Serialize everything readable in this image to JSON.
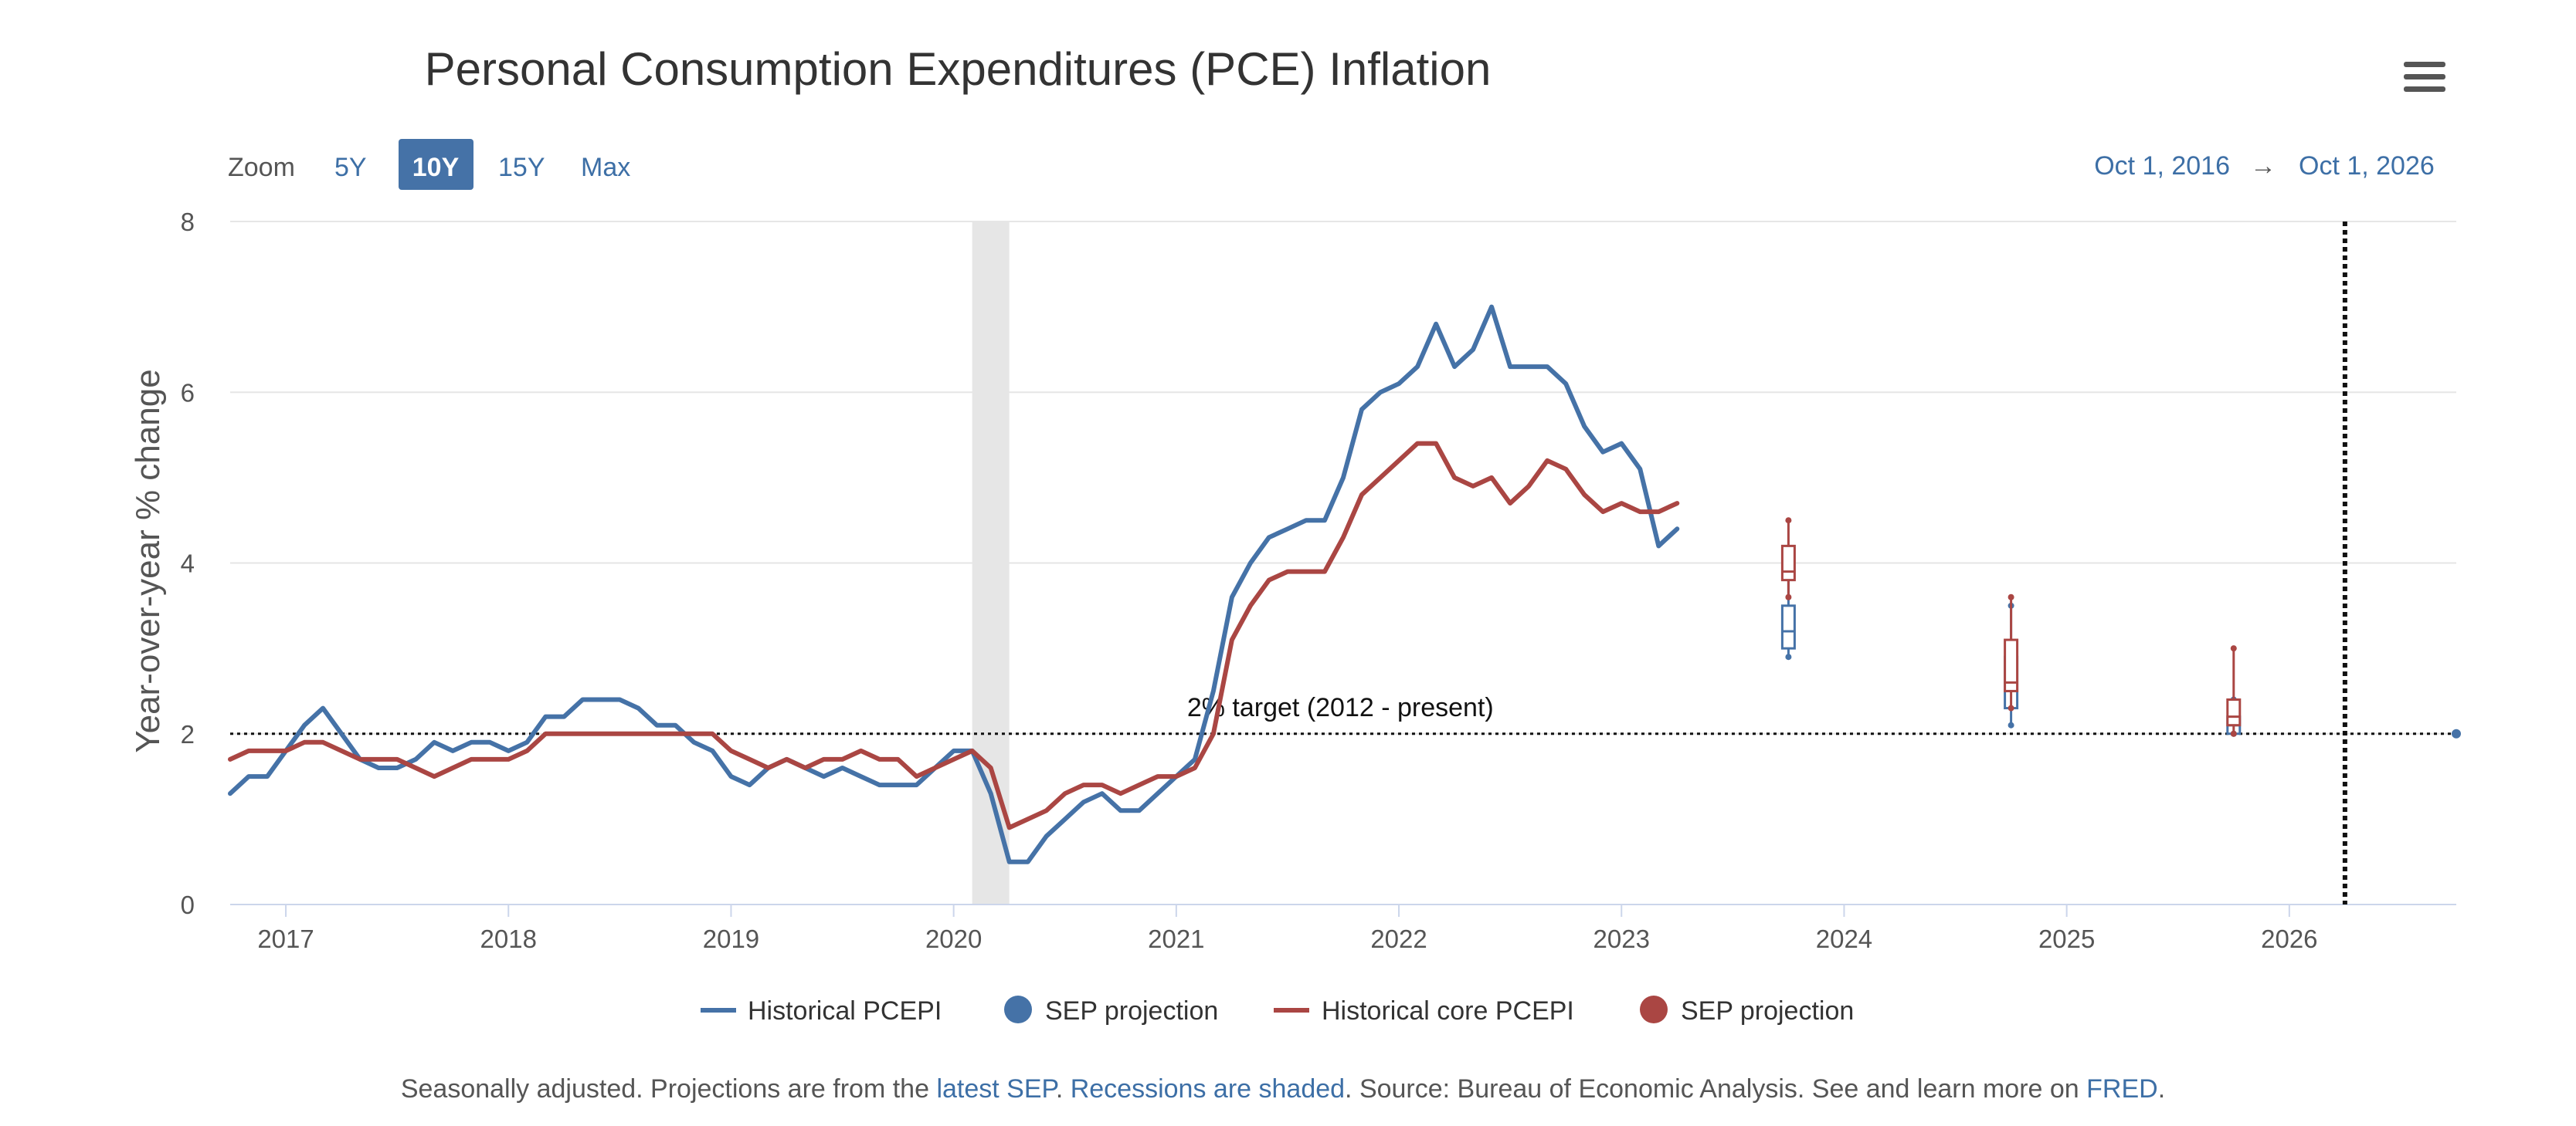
{
  "chart_data": {
    "type": "line",
    "title": "Personal Consumption Expenditures (PCE) Inflation",
    "ylabel": "Year-over-year % change",
    "xlabel": "",
    "ylim": [
      0,
      8
    ],
    "yticks": [
      "0",
      "2",
      "4",
      "6",
      "8"
    ],
    "xlim": [
      "2016-10-01",
      "2026-10-01"
    ],
    "xticks": [
      "2017",
      "2018",
      "2019",
      "2020",
      "2021",
      "2022",
      "2023",
      "2024",
      "2025",
      "2026"
    ],
    "grid": true,
    "legend_position": "bottom",
    "recession": {
      "start": "2020-02",
      "end": "2020-04"
    },
    "target": {
      "value": 2,
      "label": "2% target (2012 - present)"
    },
    "vertical_marker": "2026-04",
    "series": [
      {
        "name": "Historical PCEPI",
        "color": "#4572a7",
        "marker": "line",
        "x": [
          "2016-10",
          "2016-11",
          "2016-12",
          "2017-01",
          "2017-02",
          "2017-03",
          "2017-04",
          "2017-05",
          "2017-06",
          "2017-07",
          "2017-08",
          "2017-09",
          "2017-10",
          "2017-11",
          "2017-12",
          "2018-01",
          "2018-02",
          "2018-03",
          "2018-04",
          "2018-05",
          "2018-06",
          "2018-07",
          "2018-08",
          "2018-09",
          "2018-10",
          "2018-11",
          "2018-12",
          "2019-01",
          "2019-02",
          "2019-03",
          "2019-04",
          "2019-05",
          "2019-06",
          "2019-07",
          "2019-08",
          "2019-09",
          "2019-10",
          "2019-11",
          "2019-12",
          "2020-01",
          "2020-02",
          "2020-03",
          "2020-04",
          "2020-05",
          "2020-06",
          "2020-07",
          "2020-08",
          "2020-09",
          "2020-10",
          "2020-11",
          "2020-12",
          "2021-01",
          "2021-02",
          "2021-03",
          "2021-04",
          "2021-05",
          "2021-06",
          "2021-07",
          "2021-08",
          "2021-09",
          "2021-10",
          "2021-11",
          "2021-12",
          "2022-01",
          "2022-02",
          "2022-03",
          "2022-04",
          "2022-05",
          "2022-06",
          "2022-07",
          "2022-08",
          "2022-09",
          "2022-10",
          "2022-11",
          "2022-12",
          "2023-01",
          "2023-02",
          "2023-03",
          "2023-04"
        ],
        "values": [
          1.3,
          1.5,
          1.5,
          1.8,
          2.1,
          2.3,
          2.0,
          1.7,
          1.6,
          1.6,
          1.7,
          1.9,
          1.8,
          1.9,
          1.9,
          1.8,
          1.9,
          2.2,
          2.2,
          2.4,
          2.4,
          2.4,
          2.3,
          2.1,
          2.1,
          1.9,
          1.8,
          1.5,
          1.4,
          1.6,
          1.7,
          1.6,
          1.5,
          1.6,
          1.5,
          1.4,
          1.4,
          1.4,
          1.6,
          1.8,
          1.8,
          1.3,
          0.5,
          0.5,
          0.8,
          1.0,
          1.2,
          1.3,
          1.1,
          1.1,
          1.3,
          1.5,
          1.7,
          2.5,
          3.6,
          4.0,
          4.3,
          4.4,
          4.5,
          4.5,
          5.0,
          5.8,
          6.0,
          6.1,
          6.3,
          6.8,
          6.3,
          6.5,
          7.0,
          6.3,
          6.3,
          6.3,
          6.1,
          5.6,
          5.3,
          5.4,
          5.1,
          4.2,
          4.4
        ]
      },
      {
        "name": "SEP projection",
        "color": "#4572a7",
        "marker": "circle",
        "type": "boxplot",
        "x": [
          "2023-10",
          "2024-10",
          "2025-10",
          "2026-10"
        ],
        "boxes": [
          {
            "low": 2.9,
            "q1": 3.0,
            "median": 3.2,
            "q3": 3.5,
            "high": 4.1
          },
          {
            "low": 2.1,
            "q1": 2.3,
            "median": 2.5,
            "q3": 2.9,
            "high": 3.5
          },
          {
            "low": 2.0,
            "q1": 2.0,
            "median": 2.1,
            "q3": 2.2,
            "high": 2.4
          },
          {
            "low": 2.0,
            "q1": 2.0,
            "median": 2.0,
            "q3": 2.0,
            "high": 2.0
          }
        ]
      },
      {
        "name": "Historical core PCEPI",
        "color": "#aa4643",
        "marker": "line",
        "x": [
          "2016-10",
          "2016-11",
          "2016-12",
          "2017-01",
          "2017-02",
          "2017-03",
          "2017-04",
          "2017-05",
          "2017-06",
          "2017-07",
          "2017-08",
          "2017-09",
          "2017-10",
          "2017-11",
          "2017-12",
          "2018-01",
          "2018-02",
          "2018-03",
          "2018-04",
          "2018-05",
          "2018-06",
          "2018-07",
          "2018-08",
          "2018-09",
          "2018-10",
          "2018-11",
          "2018-12",
          "2019-01",
          "2019-02",
          "2019-03",
          "2019-04",
          "2019-05",
          "2019-06",
          "2019-07",
          "2019-08",
          "2019-09",
          "2019-10",
          "2019-11",
          "2019-12",
          "2020-01",
          "2020-02",
          "2020-03",
          "2020-04",
          "2020-05",
          "2020-06",
          "2020-07",
          "2020-08",
          "2020-09",
          "2020-10",
          "2020-11",
          "2020-12",
          "2021-01",
          "2021-02",
          "2021-03",
          "2021-04",
          "2021-05",
          "2021-06",
          "2021-07",
          "2021-08",
          "2021-09",
          "2021-10",
          "2021-11",
          "2021-12",
          "2022-01",
          "2022-02",
          "2022-03",
          "2022-04",
          "2022-05",
          "2022-06",
          "2022-07",
          "2022-08",
          "2022-09",
          "2022-10",
          "2022-11",
          "2022-12",
          "2023-01",
          "2023-02",
          "2023-03",
          "2023-04"
        ],
        "values": [
          1.7,
          1.8,
          1.8,
          1.8,
          1.9,
          1.9,
          1.8,
          1.7,
          1.7,
          1.7,
          1.6,
          1.5,
          1.6,
          1.7,
          1.7,
          1.7,
          1.8,
          2.0,
          2.0,
          2.0,
          2.0,
          2.0,
          2.0,
          2.0,
          2.0,
          2.0,
          2.0,
          1.8,
          1.7,
          1.6,
          1.7,
          1.6,
          1.7,
          1.7,
          1.8,
          1.7,
          1.7,
          1.5,
          1.6,
          1.7,
          1.8,
          1.6,
          0.9,
          1.0,
          1.1,
          1.3,
          1.4,
          1.4,
          1.3,
          1.4,
          1.5,
          1.5,
          1.6,
          2.0,
          3.1,
          3.5,
          3.8,
          3.9,
          3.9,
          3.9,
          4.3,
          4.8,
          5.0,
          5.2,
          5.4,
          5.4,
          5.0,
          4.9,
          5.0,
          4.7,
          4.9,
          5.2,
          5.1,
          4.8,
          4.6,
          4.7,
          4.6,
          4.6,
          4.7
        ]
      },
      {
        "name": "SEP projection",
        "color": "#aa4643",
        "marker": "circle",
        "type": "boxplot",
        "x": [
          "2023-10",
          "2024-10",
          "2025-10"
        ],
        "boxes": [
          {
            "low": 3.6,
            "q1": 3.8,
            "median": 3.9,
            "q3": 4.2,
            "high": 4.5
          },
          {
            "low": 2.3,
            "q1": 2.5,
            "median": 2.6,
            "q3": 3.1,
            "high": 3.6
          },
          {
            "low": 2.0,
            "q1": 2.1,
            "median": 2.2,
            "q3": 2.4,
            "high": 3.0
          }
        ]
      }
    ]
  },
  "toolbar": {
    "zoom_label": "Zoom",
    "zoom_buttons": [
      "5Y",
      "10Y",
      "15Y",
      "Max"
    ],
    "active_zoom": "10Y",
    "range_start": "Oct 1, 2016",
    "range_arrow": "→",
    "range_end": "Oct 1, 2026",
    "menu_icon": "hamburger-menu-icon"
  },
  "caption": {
    "part1": "Seasonally adjusted. Projections are from the ",
    "link1": "latest SEP",
    "part2": ". ",
    "link2": "Recessions are shaded",
    "part3": ". Source: Bureau of Economic Analysis. See and learn more on ",
    "link3": "FRED",
    "part4": "."
  },
  "colors": {
    "blue": "#4572a7",
    "red": "#aa4643",
    "link": "#3d6fa6",
    "active_button": "#4572a7",
    "recession": "#e6e6e6"
  }
}
